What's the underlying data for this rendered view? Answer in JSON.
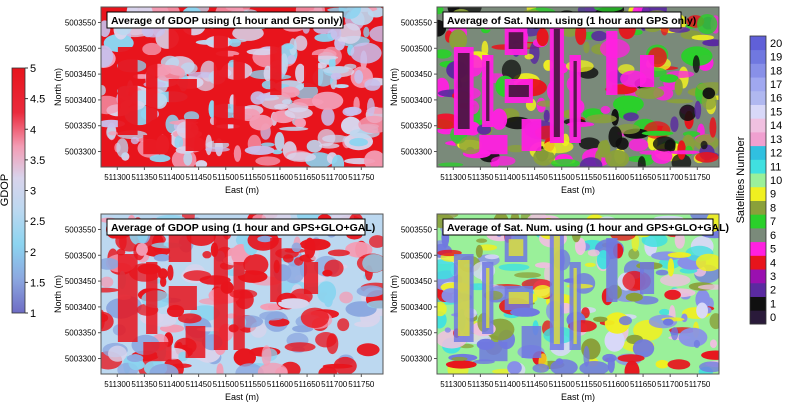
{
  "gdop_colorbar": {
    "label": "GDOP",
    "ticks": [
      "5",
      "4.5",
      "4",
      "3.5",
      "3",
      "2.5",
      "2",
      "1.5",
      "1"
    ],
    "values": [
      5,
      4.5,
      4,
      3.5,
      3,
      2.5,
      2,
      1.5,
      1
    ],
    "colors": {
      "high": "#e8141c",
      "mid_high": "#f39cb4",
      "mid": "#bcd8f0",
      "mid_low": "#8cd4f0",
      "low": "#6e6cc4"
    }
  },
  "sat_colorbar": {
    "label": "Satellites Number",
    "ticks": [
      "20",
      "19",
      "18",
      "17",
      "16",
      "15",
      "14",
      "13",
      "12",
      "11",
      "10",
      "9",
      "8",
      "7",
      "6",
      "5",
      "4",
      "3",
      "2",
      "1",
      "0"
    ],
    "colors": [
      "#2a1a3a",
      "#101010",
      "#5a2aa0",
      "#9a10b0",
      "#e8141c",
      "#ff20e0",
      "#7a8a7a",
      "#2ad02a",
      "#8aa03a",
      "#f0f020",
      "#9af09a",
      "#40e0e0",
      "#30c0e0",
      "#f0a0d0",
      "#f0c0e0",
      "#d8d8f8",
      "#b0b8f0",
      "#a0a8f0",
      "#8890e8",
      "#7078e0",
      "#6060d8"
    ]
  },
  "plots": [
    {
      "title": "Average of GDOP using (1 hour and GPS only)"
    },
    {
      "title": "Average of Sat. Num. using (1 hour and GPS only)"
    },
    {
      "title": "Average of GDOP using (1 hour and GPS+GLO+GAL)"
    },
    {
      "title": "Average of Sat. Num. using (1 hour and GPS+GLO+GAL)"
    }
  ],
  "chart_data": {
    "type": "heatmap",
    "xlabel": "East (m)",
    "ylabel": "North (m)",
    "x_ticks": [
      "511300",
      "511350",
      "511400",
      "511450",
      "511500",
      "511550",
      "511600",
      "511650",
      "511700",
      "511750"
    ],
    "y_ticks": [
      "5003550",
      "5003500",
      "5003450",
      "5003400",
      "5003350",
      "5003300"
    ],
    "xlim": [
      511270,
      511790
    ],
    "ylim": [
      5003270,
      5003580
    ],
    "panels": [
      "GDOP GPS only",
      "Sat. Num. GPS only",
      "GDOP GPS+GLO+GAL",
      "Sat. Num. GPS+GLO+GAL"
    ]
  }
}
